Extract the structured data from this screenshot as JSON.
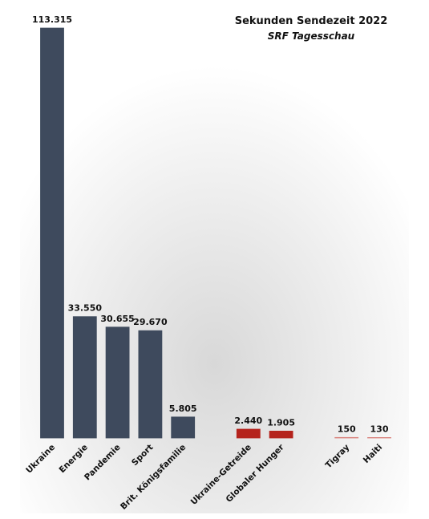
{
  "chart_data": {
    "type": "bar",
    "title": "Sekunden Sendezeit 2022",
    "subtitle": "SRF Tagesschau",
    "categories": [
      "Ukraine",
      "Energie",
      "Pandemie",
      "Sport",
      "Brit. Königsfamilie",
      null,
      "Ukraine-Getreide",
      "Globaler Hunger",
      null,
      "Tigray",
      "Haiti"
    ],
    "values": [
      113315,
      33550,
      30655,
      29670,
      5805,
      null,
      2440,
      1905,
      null,
      150,
      130
    ],
    "value_labels": [
      "113.315",
      "33.550",
      "30.655",
      "29.670",
      "5.805",
      null,
      "2.440",
      "1.905",
      null,
      "150",
      "130"
    ],
    "colors": [
      "#3e4a5d",
      "#3e4a5d",
      "#3e4a5d",
      "#3e4a5d",
      "#3e4a5d",
      null,
      "#b5231c",
      "#b5231c",
      null,
      "#d9827c",
      "#d9827c"
    ],
    "ylim": [
      0,
      113315
    ]
  }
}
